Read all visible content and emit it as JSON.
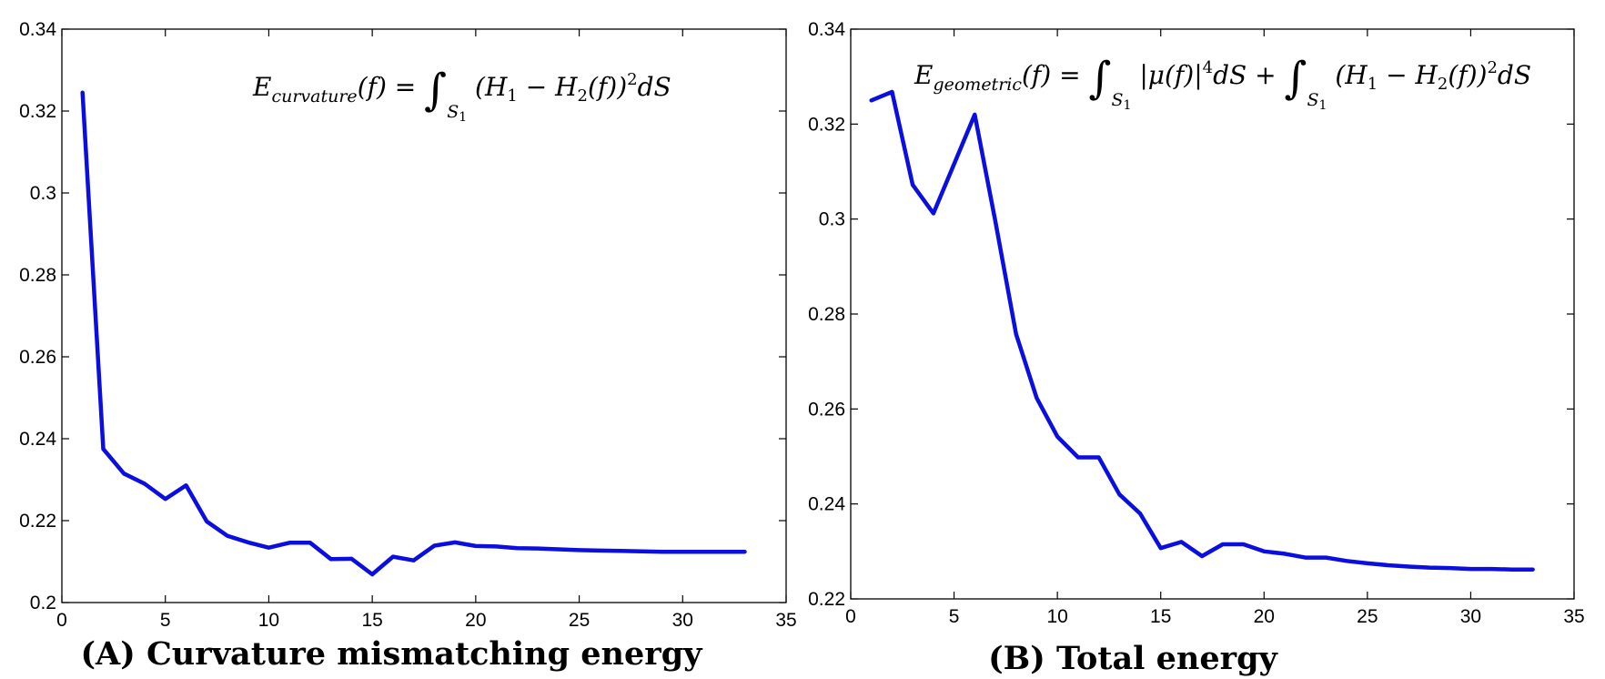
{
  "chart_data": [
    {
      "type": "line",
      "title": "",
      "caption": "(A) Curvature mismatching energy",
      "annotation": "E_curvature(f) = ∫_S1 (H1 − H2(f))² dS",
      "xlabel": "",
      "ylabel": "",
      "xlim": [
        0,
        35
      ],
      "ylim": [
        0.2,
        0.34
      ],
      "xticks": [
        0,
        5,
        10,
        15,
        20,
        25,
        30,
        35
      ],
      "yticks": [
        0.2,
        0.22,
        0.24,
        0.26,
        0.28,
        0.3,
        0.32,
        0.34
      ],
      "ytick_labels": [
        "0.2",
        "0.22",
        "0.24",
        "0.26",
        "0.28",
        "0.3",
        "0.32",
        "0.34"
      ],
      "grid": false,
      "line_color": "#0a0ee0",
      "series": [
        {
          "name": "E_curvature",
          "x": [
            1,
            2,
            3,
            4,
            5,
            6,
            7,
            8,
            9,
            10,
            11,
            12,
            13,
            14,
            15,
            16,
            17,
            18,
            19,
            20,
            21,
            22,
            23,
            24,
            25,
            26,
            27,
            28,
            29,
            30,
            31,
            32,
            33
          ],
          "values": [
            0.3245,
            0.2375,
            0.2315,
            0.229,
            0.2253,
            0.2286,
            0.2198,
            0.2163,
            0.2147,
            0.2134,
            0.2146,
            0.2146,
            0.2106,
            0.2107,
            0.2069,
            0.2112,
            0.2103,
            0.2139,
            0.2147,
            0.2138,
            0.2137,
            0.2133,
            0.2132,
            0.213,
            0.2128,
            0.2127,
            0.2126,
            0.2125,
            0.2124,
            0.2124,
            0.2124,
            0.2124,
            0.2124
          ]
        }
      ]
    },
    {
      "type": "line",
      "title": "",
      "caption": "(B)  Total energy",
      "annotation": "E_geometric(f) = ∫_S1 |μ(f)|⁴ dS + ∫_S1 (H1 − H2(f))² dS",
      "xlabel": "",
      "ylabel": "",
      "xlim": [
        0,
        35
      ],
      "ylim": [
        0.22,
        0.34
      ],
      "xticks": [
        0,
        5,
        10,
        15,
        20,
        25,
        30,
        35
      ],
      "yticks": [
        0.22,
        0.24,
        0.26,
        0.28,
        0.3,
        0.32,
        0.34
      ],
      "ytick_labels": [
        "0.22",
        "0.24",
        "0.26",
        "0.28",
        "0.3",
        "0.32",
        "0.34"
      ],
      "grid": false,
      "line_color": "#0a0ee0",
      "series": [
        {
          "name": "E_geometric",
          "x": [
            1,
            2,
            3,
            4,
            5,
            6,
            7,
            8,
            9,
            10,
            11,
            12,
            13,
            14,
            15,
            16,
            17,
            18,
            19,
            20,
            21,
            22,
            23,
            24,
            25,
            26,
            27,
            28,
            29,
            30,
            31,
            32,
            33
          ],
          "values": [
            0.325,
            0.3268,
            0.3072,
            0.3012,
            0.3116,
            0.322,
            0.2995,
            0.2758,
            0.2623,
            0.2542,
            0.2498,
            0.2498,
            0.242,
            0.238,
            0.2307,
            0.232,
            0.229,
            0.2315,
            0.2315,
            0.23,
            0.2295,
            0.2287,
            0.2287,
            0.228,
            0.2275,
            0.2271,
            0.2268,
            0.2266,
            0.2265,
            0.2263,
            0.2263,
            0.2262,
            0.2262
          ]
        }
      ]
    }
  ]
}
